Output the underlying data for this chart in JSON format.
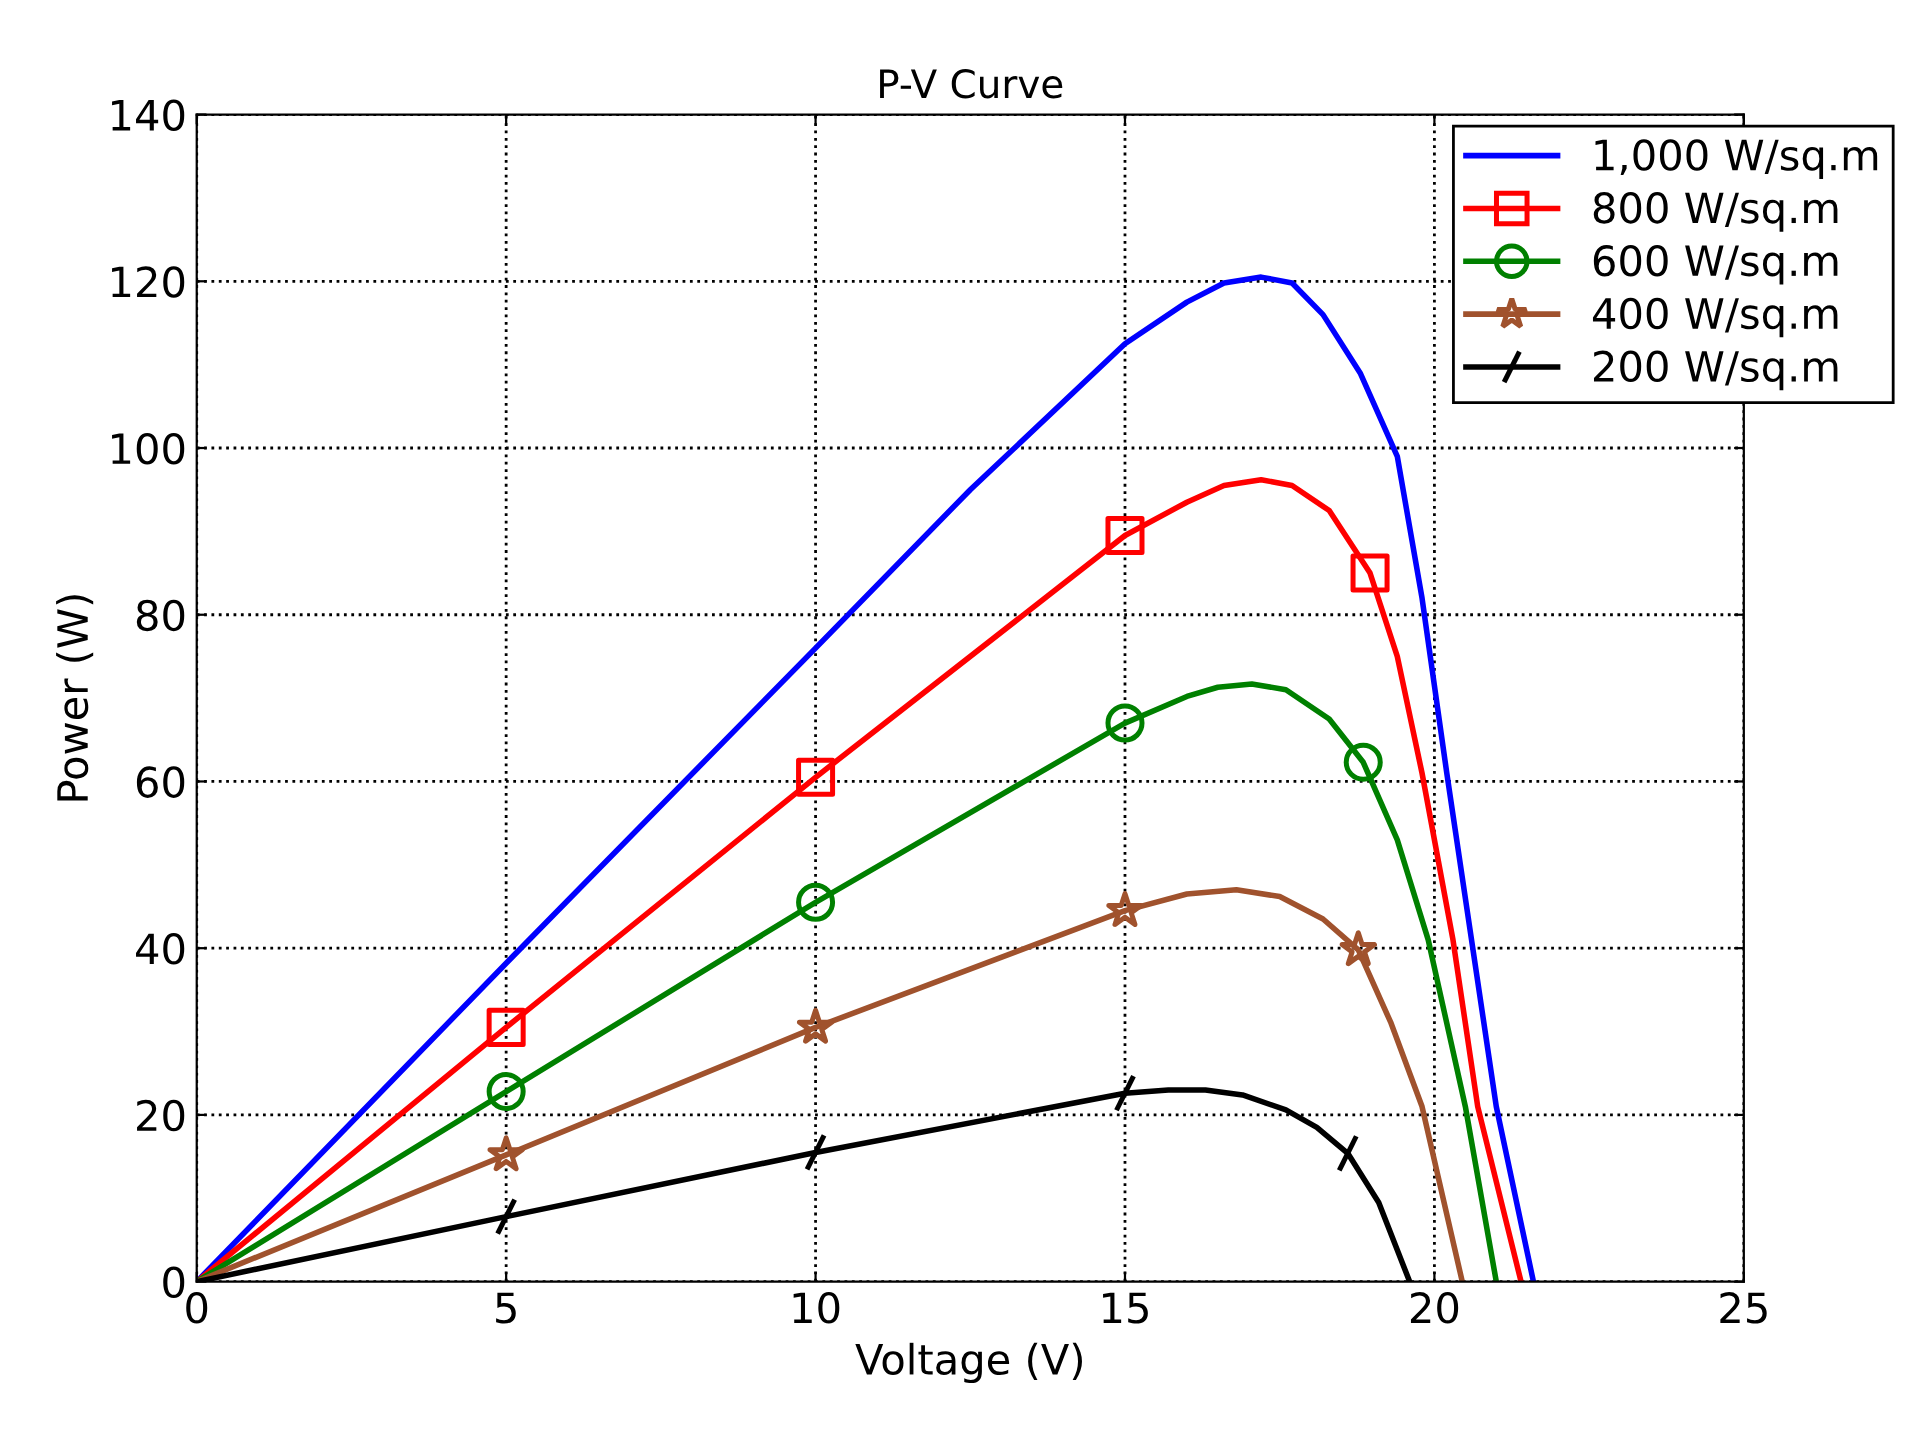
{
  "chart_data": {
    "type": "line",
    "title": "P-V Curve",
    "xlabel": "Voltage (V)",
    "ylabel": "Power (W)",
    "xlim": [
      0,
      25
    ],
    "xticks": [
      0,
      5,
      10,
      15,
      20,
      25
    ],
    "ylim": [
      0,
      140
    ],
    "yticks": [
      0,
      20,
      40,
      60,
      80,
      100,
      120,
      140
    ],
    "grid": true,
    "legend": "top right",
    "series": [
      {
        "name": "1,000 W/sq.m",
        "color": "#0000ff",
        "x": [
          0,
          5,
          10,
          12.5,
          15,
          16,
          16.6,
          17.2,
          17.7,
          18.2,
          18.8,
          19.4,
          19.8,
          20.2,
          20.6,
          21.0,
          21.6
        ],
        "values": [
          0,
          38.2,
          76,
          95,
          112.5,
          117.5,
          119.8,
          120.5,
          119.8,
          116,
          109,
          99,
          82,
          61,
          41,
          21,
          0
        ]
      },
      {
        "color": "#ff0000",
        "x": [
          0,
          5,
          10,
          15,
          16,
          16.6,
          17.2,
          17.7,
          18.3,
          18.96,
          19.4,
          19.8,
          20.3,
          20.7,
          21.4
        ],
        "values": [
          0,
          30.5,
          60.5,
          89.5,
          93.5,
          95.5,
          96.2,
          95.5,
          92.5,
          85,
          75,
          61,
          41,
          21,
          0
        ]
      },
      {
        "name": "800 W/sq.m",
        "type": "scatter",
        "color": "#ff0000",
        "marker": "square",
        "x": [
          5,
          10,
          15,
          18.96
        ],
        "values": [
          30.5,
          60.5,
          89.5,
          85
        ]
      },
      {
        "color": "#008000",
        "x": [
          0,
          5,
          10,
          15,
          16,
          16.5,
          17.05,
          17.6,
          18.3,
          18.85,
          19.4,
          19.9,
          20.5,
          21.0
        ],
        "values": [
          0,
          22.8,
          45.5,
          67,
          70.2,
          71.3,
          71.7,
          71,
          67.5,
          62.3,
          53,
          41,
          21,
          0
        ]
      },
      {
        "name": "600 W/sq.m",
        "type": "scatter",
        "color": "#008000",
        "marker": "circle",
        "x": [
          5,
          10,
          15,
          18.85
        ],
        "values": [
          22.8,
          45.5,
          67,
          62.3
        ]
      },
      {
        "color": "#a0522d",
        "x": [
          0,
          5,
          10,
          15,
          16,
          16.8,
          17.5,
          18.2,
          18.77,
          19.3,
          19.8,
          20.45
        ],
        "values": [
          0,
          15.2,
          30.5,
          44.5,
          46.5,
          47,
          46.2,
          43.5,
          39.8,
          31,
          21,
          0
        ]
      },
      {
        "name": "400 W/sq.m",
        "type": "scatter",
        "color": "#a0522d",
        "marker": "star",
        "x": [
          5,
          10,
          15,
          18.77
        ],
        "values": [
          15.2,
          30.5,
          44.5,
          39.8
        ]
      },
      {
        "color": "#000000",
        "x": [
          0,
          5,
          10,
          15,
          15.7,
          16.3,
          16.9,
          17.6,
          18.1,
          18.6,
          19.1,
          19.6
        ],
        "values": [
          0,
          7.8,
          15.5,
          22.6,
          23,
          23,
          22.4,
          20.6,
          18.5,
          15.4,
          9.5,
          0
        ]
      },
      {
        "name": "200 W/sq.m",
        "type": "scatter",
        "color": "#000000",
        "marker": "cross",
        "x": [
          5,
          10,
          15,
          18.6
        ],
        "values": [
          7.8,
          15.5,
          22.6,
          15.4
        ]
      }
    ]
  }
}
